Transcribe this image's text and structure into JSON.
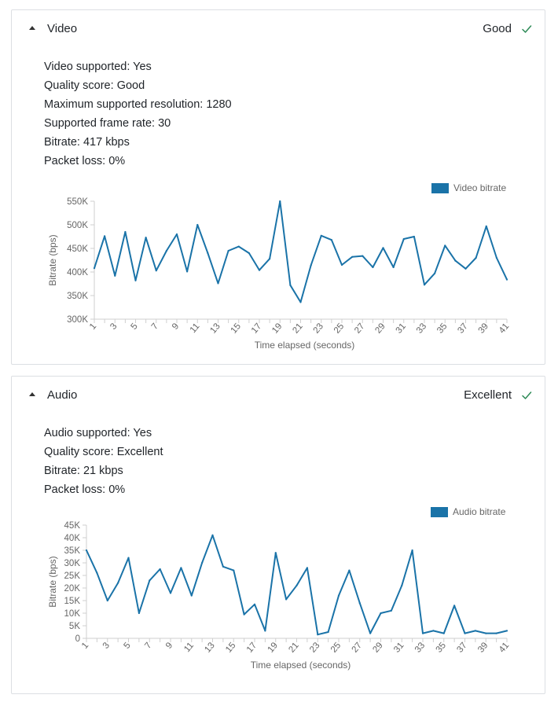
{
  "video": {
    "title": "Video",
    "status": "Good",
    "status_icon": "check-icon",
    "info": [
      {
        "label": "Video supported:",
        "value": "Yes"
      },
      {
        "label": "Quality score:",
        "value": "Good"
      },
      {
        "label": "Maximum supported resolution:",
        "value": "1280"
      },
      {
        "label": "Supported frame rate:",
        "value": "30"
      },
      {
        "label": "Bitrate:",
        "value": "417 kbps"
      },
      {
        "label": "Packet loss:",
        "value": "0%"
      }
    ]
  },
  "audio": {
    "title": "Audio",
    "status": "Excellent",
    "status_icon": "check-icon",
    "info": [
      {
        "label": "Audio supported:",
        "value": "Yes"
      },
      {
        "label": "Quality score:",
        "value": "Excellent"
      },
      {
        "label": "Bitrate:",
        "value": "21 kbps"
      },
      {
        "label": "Packet loss:",
        "value": "0%"
      }
    ]
  },
  "colors": {
    "accent": "#1a73a8",
    "check": "#2e8b57"
  },
  "chart_data": [
    {
      "type": "line",
      "series": [
        {
          "name": "Video bitrate",
          "values": [
            408,
            476,
            392,
            485,
            382,
            473,
            403,
            445,
            480,
            401,
            500,
            440,
            376,
            445,
            454,
            440,
            404,
            428,
            550,
            372,
            336,
            414,
            477,
            468,
            415,
            432,
            434,
            410,
            451,
            410,
            470,
            475,
            373,
            397,
            456,
            424,
            407,
            430,
            497,
            430,
            384
          ]
        }
      ],
      "x": [
        1,
        2,
        3,
        4,
        5,
        6,
        7,
        8,
        9,
        10,
        11,
        12,
        13,
        14,
        15,
        16,
        17,
        18,
        19,
        20,
        21,
        22,
        23,
        24,
        25,
        26,
        27,
        28,
        29,
        30,
        31,
        32,
        33,
        34,
        35,
        36,
        37,
        38,
        39,
        40,
        41
      ],
      "xlabel": "Time elapsed (seconds)",
      "ylabel": "Bitrate (bps)",
      "ylim": [
        300,
        550
      ],
      "yticks": [
        300,
        350,
        400,
        450,
        500,
        550
      ],
      "ytick_labels": [
        "300K",
        "350K",
        "400K",
        "450K",
        "500K",
        "550K"
      ],
      "xtick_labels": [
        "1",
        "3",
        "5",
        "7",
        "9",
        "11",
        "13",
        "15",
        "17",
        "19",
        "21",
        "23",
        "25",
        "27",
        "29",
        "31",
        "33",
        "35",
        "37",
        "39",
        "41"
      ],
      "legend": "top-right",
      "grid": false
    },
    {
      "type": "line",
      "series": [
        {
          "name": "Audio bitrate",
          "values": [
            35,
            26,
            15,
            22,
            32,
            10,
            23,
            27.5,
            18,
            28,
            17,
            30,
            41,
            28.5,
            27,
            9.5,
            13.5,
            3,
            34,
            15.5,
            21,
            28,
            1.5,
            2.5,
            17,
            27,
            14,
            2,
            10,
            11,
            21,
            35,
            2,
            3,
            2,
            13,
            2,
            3,
            2,
            2,
            3
          ]
        }
      ],
      "x": [
        1,
        2,
        3,
        4,
        5,
        6,
        7,
        8,
        9,
        10,
        11,
        12,
        13,
        14,
        15,
        16,
        17,
        18,
        19,
        20,
        21,
        22,
        23,
        24,
        25,
        26,
        27,
        28,
        29,
        30,
        31,
        32,
        33,
        34,
        35,
        36,
        37,
        38,
        39,
        40,
        41
      ],
      "xlabel": "Time elapsed (seconds)",
      "ylabel": "Bitrate (bps)",
      "ylim": [
        0,
        45
      ],
      "yticks": [
        0,
        5,
        10,
        15,
        20,
        25,
        30,
        35,
        40,
        45
      ],
      "ytick_labels": [
        "0",
        "5K",
        "10K",
        "15K",
        "20K",
        "25K",
        "30K",
        "35K",
        "40K",
        "45K"
      ],
      "xtick_labels": [
        "1",
        "3",
        "5",
        "7",
        "9",
        "11",
        "13",
        "15",
        "17",
        "19",
        "21",
        "23",
        "25",
        "27",
        "29",
        "31",
        "33",
        "35",
        "37",
        "39",
        "41"
      ],
      "legend": "top-right",
      "grid": false
    }
  ]
}
